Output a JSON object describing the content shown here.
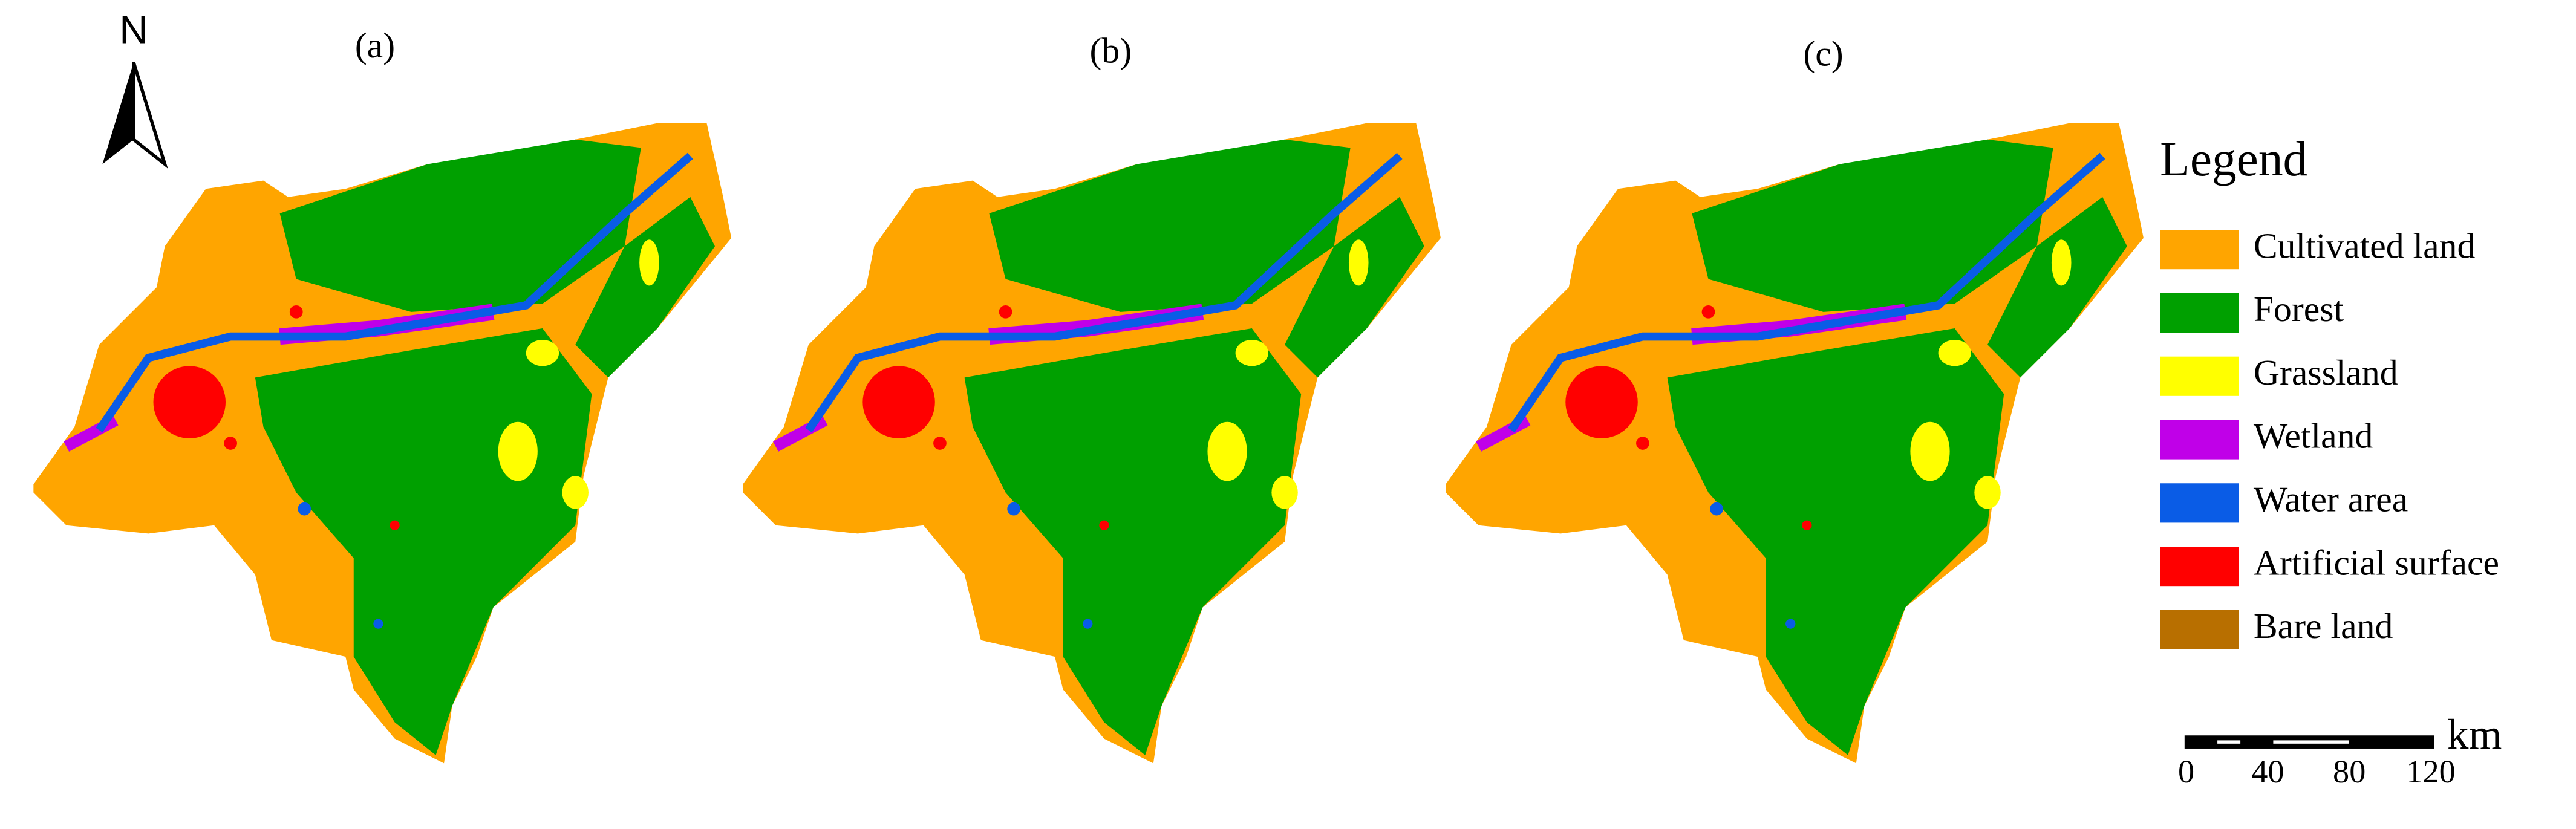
{
  "north_arrow": {
    "label": "N"
  },
  "panels": [
    {
      "label": "(a)"
    },
    {
      "label": "(b)"
    },
    {
      "label": "(c)"
    }
  ],
  "legend": {
    "title": "Legend",
    "items": [
      {
        "label": "Cultivated land",
        "color": "#ffa500"
      },
      {
        "label": "Forest",
        "color": "#00a000"
      },
      {
        "label": "Grassland",
        "color": "#ffff00"
      },
      {
        "label": "Wetland",
        "color": "#c000e8"
      },
      {
        "label": "Water area",
        "color": "#0a5ce6"
      },
      {
        "label": "Artificial surface",
        "color": "#ff0000"
      },
      {
        "label": "Bare land",
        "color": "#b86f00"
      }
    ]
  },
  "scale_bar": {
    "unit": "km",
    "ticks": [
      0,
      40,
      80,
      120
    ]
  }
}
